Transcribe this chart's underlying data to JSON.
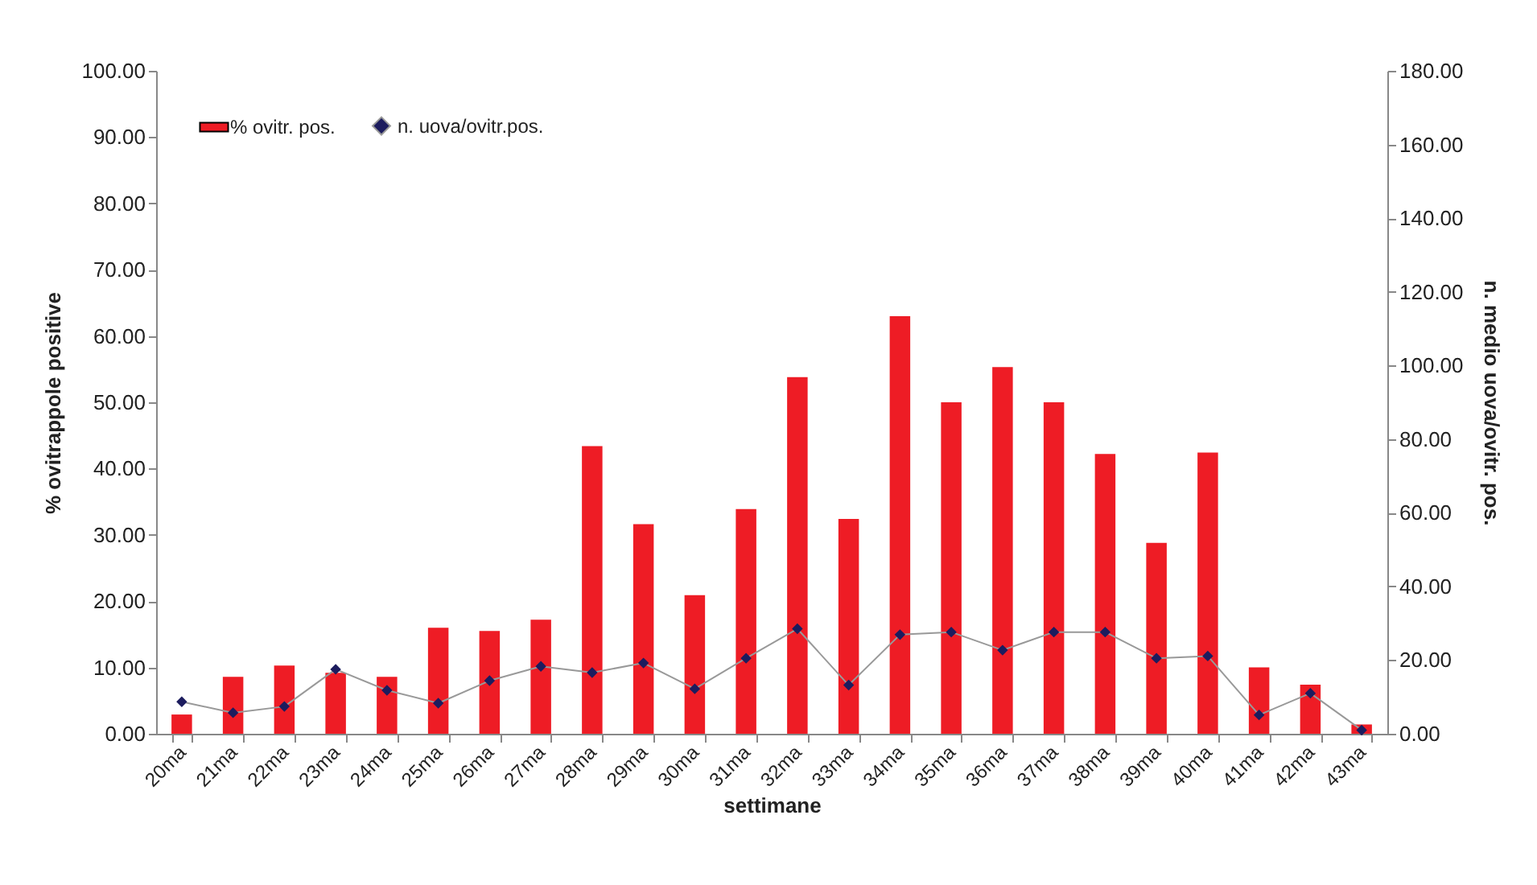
{
  "chart_data": {
    "type": "bar",
    "xlabel": "settimane",
    "ylabel": "% ovitrappole positive",
    "y2label": "n. medio uova/ovitr. pos.",
    "categories": [
      "20ma",
      "21ma",
      "22ma",
      "23ma",
      "24ma",
      "25ma",
      "26ma",
      "27ma",
      "28ma",
      "29ma",
      "30ma",
      "31ma",
      "32ma",
      "33ma",
      "34ma",
      "35ma",
      "36ma",
      "37ma",
      "38ma",
      "39ma",
      "40ma",
      "41ma",
      "42ma",
      "43ma"
    ],
    "series": [
      {
        "name": "% ovitr. pos.",
        "color": "#ee1c25",
        "values": [
          2.9,
          8.6,
          10.3,
          9.2,
          8.6,
          16.0,
          15.5,
          17.2,
          43.4,
          31.6,
          20.9,
          33.9,
          53.8,
          32.4,
          63.0,
          50.0,
          55.3,
          50.0,
          42.2,
          28.8,
          42.4,
          10.0,
          7.4,
          1.4
        ]
      },
      {
        "name": "n. uova/ovitr.pos.",
        "type": "line",
        "axis": "y2",
        "color": "#1c1c5e",
        "marker": "diamond",
        "values": [
          8.7,
          5.7,
          7.4,
          17.5,
          11.8,
          8.3,
          14.4,
          18.3,
          16.6,
          19.2,
          12.2,
          20.5,
          28.5,
          13.2,
          26.9,
          27.6,
          22.7,
          27.6,
          27.6,
          20.5,
          21.1,
          5.1,
          11.0,
          1.0
        ]
      }
    ],
    "ylim": [
      0,
      100
    ],
    "yticks": [
      {
        "value": 0,
        "label": "0.00"
      },
      {
        "value": 10,
        "label": "10.00"
      },
      {
        "value": 20,
        "label": "20.00"
      },
      {
        "value": 30,
        "label": "30.00"
      },
      {
        "value": 40,
        "label": "40.00"
      },
      {
        "value": 50,
        "label": "50.00"
      },
      {
        "value": 60,
        "label": "60.00"
      },
      {
        "value": 70,
        "label": "70.00"
      },
      {
        "value": 80,
        "label": "80.00"
      },
      {
        "value": 90,
        "label": "90.00"
      },
      {
        "value": 100,
        "label": "100.00"
      }
    ],
    "y2lim": [
      0,
      180
    ],
    "y2ticks": [
      {
        "value": 0,
        "label": "0.00"
      },
      {
        "value": 20,
        "label": "20.00"
      },
      {
        "value": 40,
        "label": "40.00"
      },
      {
        "value": 60,
        "label": "60.00"
      },
      {
        "value": 80,
        "label": "80.00"
      },
      {
        "value": 100,
        "label": "100.00"
      },
      {
        "value": 120,
        "label": "120.00"
      },
      {
        "value": 140,
        "label": "140.00"
      },
      {
        "value": 160,
        "label": "160.00"
      },
      {
        "value": 180,
        "label": "180.00"
      }
    ],
    "grid": false,
    "legend": "top left"
  }
}
